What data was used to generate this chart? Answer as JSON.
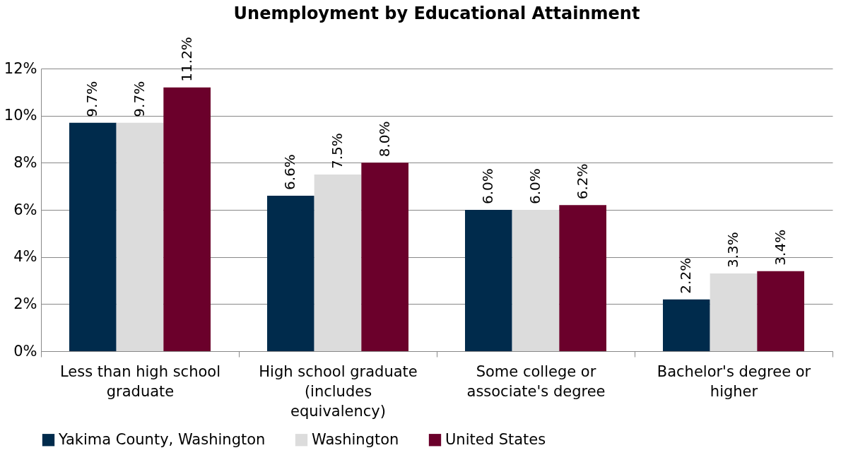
{
  "chart_data": {
    "type": "bar",
    "title": "Unemployment by Educational Attainment",
    "categories": [
      "Less than high school graduate",
      "High school graduate (includes equivalency)",
      "Some college or associate's degree",
      "Bachelor's degree or higher"
    ],
    "series": [
      {
        "name": "Yakima County, Washington",
        "color": "#002b4c",
        "values": [
          9.7,
          6.6,
          6.0,
          2.2
        ],
        "value_labels": [
          "9.7%",
          "6.6%",
          "6.0%",
          "2.2%"
        ]
      },
      {
        "name": "Washington",
        "color": "#dcdcdc",
        "values": [
          9.7,
          7.5,
          6.0,
          3.3
        ],
        "value_labels": [
          "9.7%",
          "7.5%",
          "6.0%",
          "3.3%"
        ]
      },
      {
        "name": "United States",
        "color": "#6b002b",
        "values": [
          11.2,
          8.0,
          6.2,
          3.4
        ],
        "value_labels": [
          "11.2%",
          "8.0%",
          "6.2%",
          "3.4%"
        ]
      }
    ],
    "ylim": [
      0,
      12
    ],
    "yticks": [
      {
        "value": 0,
        "label": "0%"
      },
      {
        "value": 2,
        "label": "2%"
      },
      {
        "value": 4,
        "label": "4%"
      },
      {
        "value": 6,
        "label": "6%"
      },
      {
        "value": 8,
        "label": "8%"
      },
      {
        "value": 10,
        "label": "10%"
      },
      {
        "value": 12,
        "label": "12%"
      }
    ],
    "grid": "y",
    "legend": "bottom"
  }
}
